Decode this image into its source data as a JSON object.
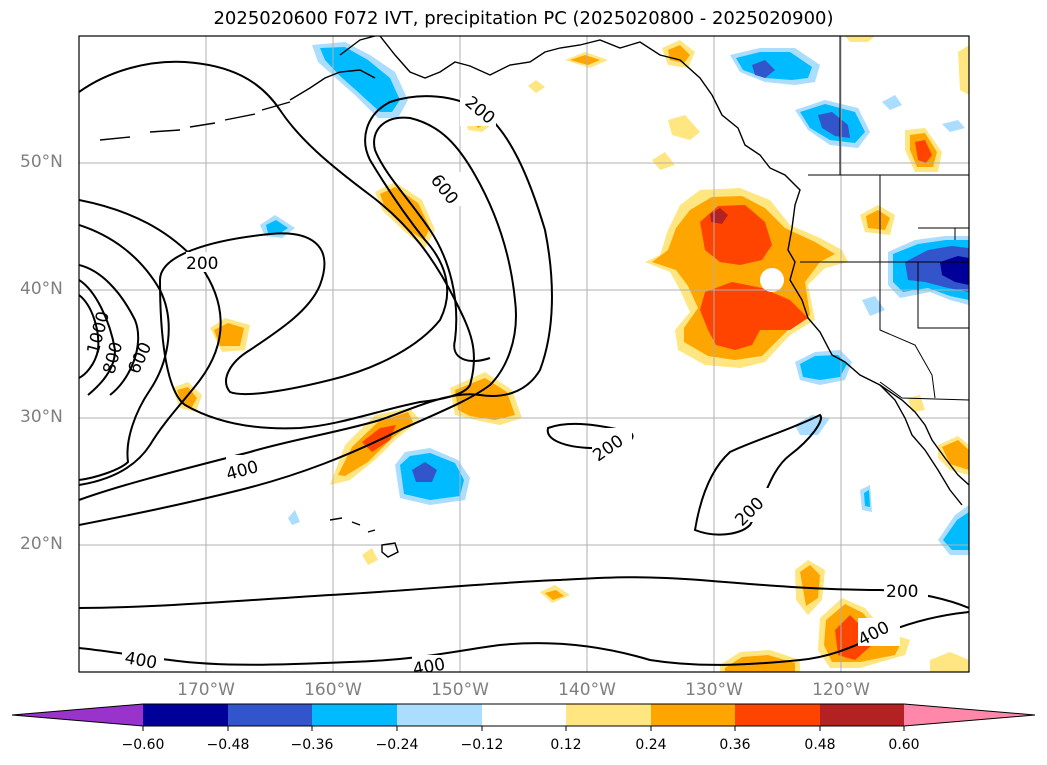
{
  "title": "2025020600 F072 IVT, precipitation PC (2025020800 - 2025020900)",
  "lat_labels": [
    "50°N",
    "40°N",
    "30°N",
    "20°N"
  ],
  "lon_labels": [
    "170°W",
    "160°W",
    "150°W",
    "140°W",
    "130°W",
    "120°W"
  ],
  "contour_labels": [
    "200",
    "600",
    "200",
    "1000",
    "800",
    "600",
    "400",
    "200",
    "200",
    "200",
    "400",
    "400",
    "400"
  ],
  "colorbar": {
    "ticks": [
      "−0.60",
      "−0.48",
      "−0.36",
      "−0.24",
      "−0.12",
      "0.12",
      "0.24",
      "0.36",
      "0.48",
      "0.60"
    ],
    "colors": [
      "#9933cc",
      "#000099",
      "#3355cc",
      "#00bbff",
      "#aaddff",
      "#ffffff",
      "#ffe680",
      "#ffa500",
      "#ff4400",
      "#b22222",
      "#ff88aa"
    ]
  }
}
